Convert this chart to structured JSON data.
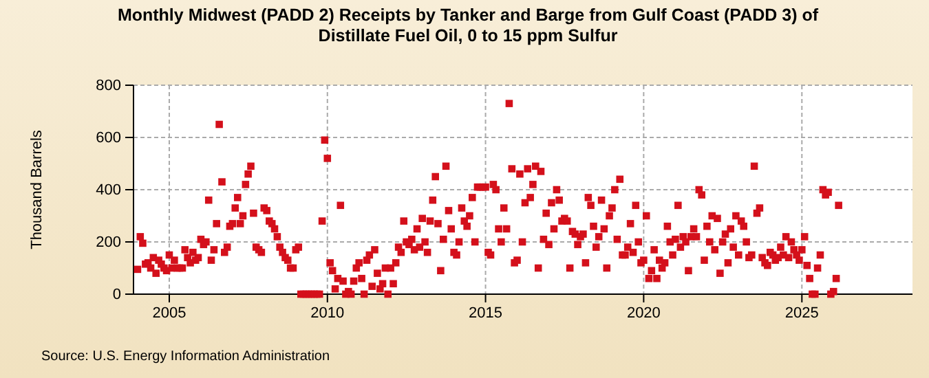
{
  "chart_data": {
    "type": "scatter",
    "title": "Monthly Midwest (PADD 2) Receipts by Tanker and Barge from Gulf Coast (PADD 3) of Distillate Fuel Oil, 0 to 15 ppm Sulfur",
    "ylabel": "Thousand Barrels",
    "annotations": [
      "Source: U.S. Energy Information Administration"
    ],
    "x": [
      "2004-01",
      "2004-02",
      "2004-03",
      "2004-04",
      "2004-05",
      "2004-06",
      "2004-07",
      "2004-08",
      "2004-09",
      "2004-10",
      "2004-11",
      "2004-12",
      "2005-01",
      "2005-02",
      "2005-03",
      "2005-04",
      "2005-05",
      "2005-06",
      "2005-07",
      "2005-08",
      "2005-09",
      "2005-10",
      "2005-11",
      "2005-12",
      "2006-01",
      "2006-02",
      "2006-03",
      "2006-04",
      "2006-05",
      "2006-06",
      "2006-07",
      "2006-08",
      "2006-09",
      "2006-10",
      "2006-11",
      "2006-12",
      "2007-01",
      "2007-02",
      "2007-03",
      "2007-04",
      "2007-05",
      "2007-06",
      "2007-07",
      "2007-08",
      "2007-09",
      "2007-10",
      "2007-11",
      "2007-12",
      "2008-01",
      "2008-02",
      "2008-03",
      "2008-04",
      "2008-05",
      "2008-06",
      "2008-07",
      "2008-08",
      "2008-09",
      "2008-10",
      "2008-11",
      "2008-12",
      "2009-01",
      "2009-02",
      "2009-03",
      "2009-04",
      "2009-05",
      "2009-06",
      "2009-07",
      "2009-08",
      "2009-09",
      "2009-10",
      "2009-11",
      "2009-12",
      "2010-01",
      "2010-02",
      "2010-03",
      "2010-04",
      "2010-05",
      "2010-06",
      "2010-07",
      "2010-08",
      "2010-09",
      "2010-10",
      "2010-11",
      "2010-12",
      "2011-01",
      "2011-02",
      "2011-03",
      "2011-04",
      "2011-05",
      "2011-06",
      "2011-07",
      "2011-08",
      "2011-09",
      "2011-10",
      "2011-11",
      "2011-12",
      "2012-01",
      "2012-02",
      "2012-03",
      "2012-04",
      "2012-05",
      "2012-06",
      "2012-07",
      "2012-08",
      "2012-09",
      "2012-10",
      "2012-11",
      "2012-12",
      "2013-01",
      "2013-02",
      "2013-03",
      "2013-04",
      "2013-05",
      "2013-06",
      "2013-07",
      "2013-08",
      "2013-09",
      "2013-10",
      "2013-11",
      "2013-12",
      "2014-01",
      "2014-02",
      "2014-03",
      "2014-04",
      "2014-05",
      "2014-06",
      "2014-07",
      "2014-08",
      "2014-09",
      "2014-10",
      "2014-11",
      "2014-12",
      "2015-01",
      "2015-02",
      "2015-03",
      "2015-04",
      "2015-05",
      "2015-06",
      "2015-07",
      "2015-08",
      "2015-09",
      "2015-10",
      "2015-11",
      "2015-12",
      "2016-01",
      "2016-02",
      "2016-03",
      "2016-04",
      "2016-05",
      "2016-06",
      "2016-07",
      "2016-08",
      "2016-09",
      "2016-10",
      "2016-11",
      "2016-12",
      "2017-01",
      "2017-02",
      "2017-03",
      "2017-04",
      "2017-05",
      "2017-06",
      "2017-07",
      "2017-08",
      "2017-09",
      "2017-10",
      "2017-11",
      "2017-12",
      "2018-01",
      "2018-02",
      "2018-03",
      "2018-04",
      "2018-05",
      "2018-06",
      "2018-07",
      "2018-08",
      "2018-09",
      "2018-10",
      "2018-11",
      "2018-12",
      "2019-01",
      "2019-02",
      "2019-03",
      "2019-04",
      "2019-05",
      "2019-06",
      "2019-07",
      "2019-08",
      "2019-09",
      "2019-10",
      "2019-11",
      "2019-12",
      "2020-01",
      "2020-02",
      "2020-03",
      "2020-04",
      "2020-05",
      "2020-06",
      "2020-07",
      "2020-08",
      "2020-09",
      "2020-10",
      "2020-11",
      "2020-12",
      "2021-01",
      "2021-02",
      "2021-03",
      "2021-04",
      "2021-05",
      "2021-06",
      "2021-07",
      "2021-08",
      "2021-09",
      "2021-10",
      "2021-11",
      "2021-12",
      "2022-01",
      "2022-02",
      "2022-03",
      "2022-04",
      "2022-05",
      "2022-06",
      "2022-07",
      "2022-08",
      "2022-09",
      "2022-10",
      "2022-11",
      "2022-12",
      "2023-01",
      "2023-02",
      "2023-03",
      "2023-04",
      "2023-05",
      "2023-06",
      "2023-07",
      "2023-08",
      "2023-09",
      "2023-10",
      "2023-11",
      "2023-12",
      "2024-01",
      "2024-02",
      "2024-03",
      "2024-04",
      "2024-05",
      "2024-06",
      "2024-07",
      "2024-08",
      "2024-09",
      "2024-10",
      "2024-11",
      "2024-12",
      "2025-01",
      "2025-02",
      "2025-03",
      "2025-04",
      "2025-05",
      "2025-06",
      "2025-07",
      "2025-08",
      "2025-09",
      "2025-10",
      "2025-11",
      "2025-12",
      "2026-01",
      "2026-02",
      "2026-03"
    ],
    "series": [
      {
        "color": "#d4101b",
        "values": [
          95,
          220,
          195,
          115,
          120,
          100,
          140,
          80,
          130,
          115,
          100,
          90,
          150,
          100,
          130,
          100,
          100,
          100,
          170,
          140,
          120,
          160,
          130,
          140,
          210,
          190,
          200,
          360,
          130,
          170,
          270,
          650,
          430,
          160,
          180,
          260,
          270,
          330,
          370,
          270,
          300,
          420,
          460,
          490,
          310,
          180,
          170,
          160,
          330,
          320,
          280,
          270,
          250,
          220,
          180,
          160,
          140,
          130,
          100,
          100,
          170,
          180,
          0,
          0,
          0,
          0,
          0,
          0,
          0,
          0,
          280,
          590,
          520,
          120,
          90,
          20,
          60,
          340,
          50,
          0,
          10,
          0,
          50,
          100,
          120,
          60,
          0,
          130,
          150,
          30,
          170,
          80,
          20,
          40,
          100,
          0,
          100,
          40,
          120,
          180,
          160,
          280,
          200,
          190,
          210,
          170,
          250,
          180,
          290,
          200,
          160,
          280,
          360,
          450,
          270,
          90,
          210,
          490,
          320,
          250,
          160,
          150,
          200,
          330,
          280,
          260,
          300,
          370,
          200,
          410,
          410,
          410,
          410,
          160,
          150,
          420,
          400,
          250,
          200,
          330,
          250,
          730,
          480,
          120,
          130,
          460,
          200,
          350,
          480,
          370,
          420,
          490,
          100,
          470,
          210,
          310,
          190,
          350,
          250,
          400,
          360,
          280,
          290,
          280,
          100,
          240,
          230,
          190,
          220,
          230,
          120,
          370,
          340,
          260,
          180,
          220,
          360,
          250,
          100,
          300,
          330,
          400,
          210,
          440,
          150,
          150,
          180,
          270,
          160,
          340,
          200,
          120,
          130,
          300,
          60,
          90,
          170,
          60,
          130,
          100,
          120,
          260,
          200,
          150,
          210,
          340,
          180,
          220,
          200,
          90,
          220,
          250,
          220,
          400,
          380,
          130,
          260,
          200,
          300,
          170,
          290,
          80,
          200,
          230,
          120,
          250,
          180,
          300,
          150,
          280,
          260,
          200,
          140,
          150,
          490,
          310,
          330,
          140,
          120,
          110,
          160,
          150,
          130,
          140,
          180,
          150,
          220,
          140,
          200,
          170,
          150,
          130,
          170,
          220,
          110,
          60,
          0,
          0,
          100,
          150,
          400,
          380,
          390,
          0,
          10,
          60,
          340
        ]
      }
    ],
    "xlim": [
      "2003-11-15",
      "2028-07-01"
    ],
    "xticks": [
      {
        "value": "2005-01-01",
        "label": "2005"
      },
      {
        "value": "2010-01-01",
        "label": "2010"
      },
      {
        "value": "2015-01-01",
        "label": "2015"
      },
      {
        "value": "2020-01-01",
        "label": "2020"
      },
      {
        "value": "2025-01-01",
        "label": "2025"
      }
    ],
    "ylim": [
      0,
      800
    ],
    "yticks": [
      0,
      200,
      400,
      600,
      800
    ],
    "grid": true,
    "marker": "square"
  }
}
